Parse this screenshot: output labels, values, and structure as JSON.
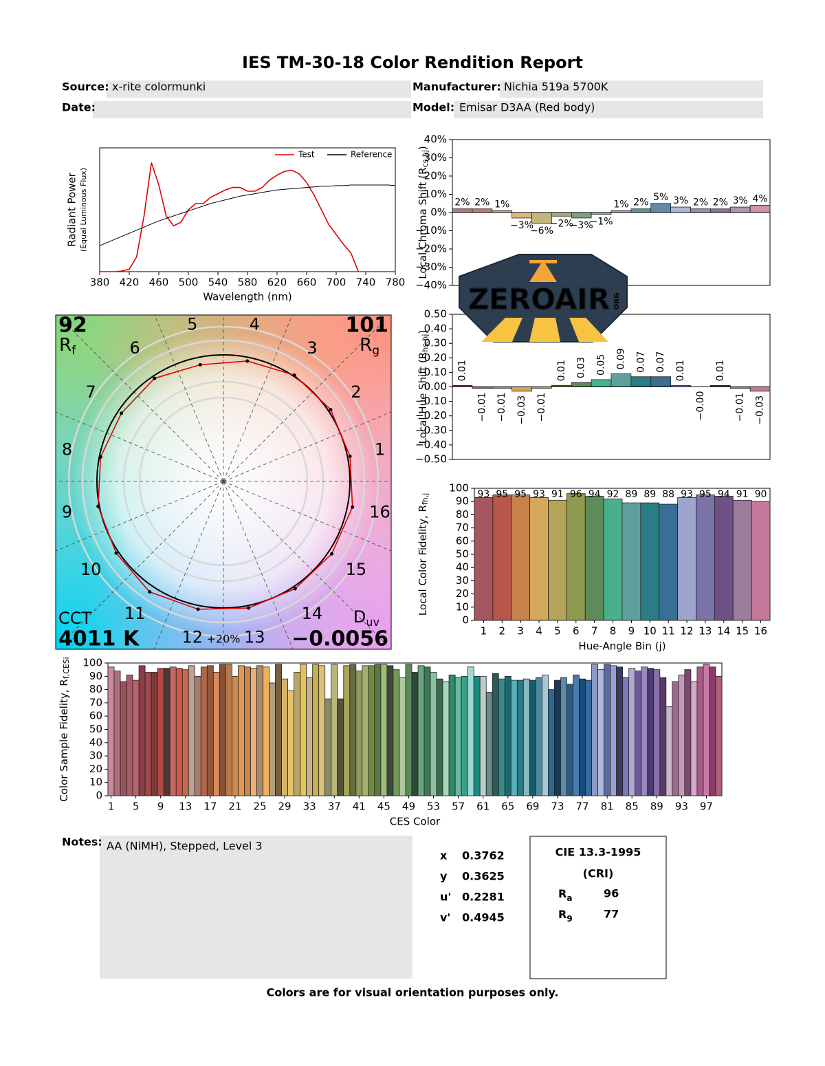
{
  "header": {
    "title": "IES TM-30-18 Color Rendition Report",
    "fields": [
      {
        "label": "Source:",
        "value": "x-rite colormunki"
      },
      {
        "label": "Manufacturer:",
        "value": "Nichia 519a 5700K"
      },
      {
        "label": "Date:"
      },
      {
        "label": "Model:",
        "value": "Emisar D3AA (Red body)"
      }
    ]
  },
  "chart_data": [
    {
      "type": "line",
      "xlabel": "Wavelength (nm)",
      "ylabel": {
        "text": "Radiant Power",
        "note": "(Equal Luminous Flux)"
      },
      "x": [
        380,
        390,
        400,
        410,
        420,
        430,
        440,
        450,
        460,
        470,
        480,
        490,
        500,
        510,
        520,
        530,
        540,
        550,
        560,
        570,
        580,
        590,
        600,
        610,
        620,
        630,
        640,
        650,
        660,
        670,
        680,
        690,
        700,
        710,
        720,
        730,
        740,
        750,
        760,
        770,
        780
      ],
      "xlim": [
        380,
        780
      ],
      "xticks": [
        380,
        420,
        460,
        500,
        540,
        580,
        620,
        660,
        700,
        740,
        780
      ],
      "ylim": [
        0,
        1
      ],
      "legend": "upper right",
      "series": [
        {
          "name": "Test",
          "color": "#e00000",
          "values": [
            0,
            0,
            0,
            0.005,
            0.02,
            0.12,
            0.45,
            0.88,
            0.7,
            0.45,
            0.37,
            0.4,
            0.5,
            0.55,
            0.55,
            0.6,
            0.63,
            0.66,
            0.68,
            0.68,
            0.65,
            0.65,
            0.68,
            0.74,
            0.78,
            0.81,
            0.82,
            0.79,
            0.72,
            0.62,
            0.5,
            0.38,
            0.3,
            0.22,
            0.15,
            0,
            null,
            null,
            null,
            null,
            null
          ]
        },
        {
          "name": "Reference",
          "color": "#000000",
          "values": [
            0.21,
            0.235,
            0.26,
            0.285,
            0.31,
            0.335,
            0.36,
            0.385,
            0.41,
            0.43,
            0.45,
            0.47,
            0.49,
            0.51,
            0.53,
            0.55,
            0.565,
            0.58,
            0.595,
            0.61,
            0.62,
            0.63,
            0.64,
            0.65,
            0.66,
            0.665,
            0.67,
            0.675,
            0.68,
            0.685,
            0.69,
            0.69,
            0.695,
            0.695,
            0.7,
            0.7,
            0.7,
            0.7,
            0.7,
            0.7,
            0.695
          ]
        }
      ]
    },
    {
      "type": "bar",
      "ylabel": {
        "text": "Local Chroma Shift (R",
        "sub": "cs,hj",
        "suffix": ")"
      },
      "values": [
        2,
        2,
        1,
        -3,
        -6,
        -2,
        -3,
        -1,
        1,
        2,
        5,
        3,
        2,
        2,
        3,
        4
      ],
      "value_labels": [
        "2%",
        "2%",
        "1%",
        "−3%",
        "−6%",
        "−2%",
        "−3%",
        "−1%",
        "1%",
        "2%",
        "5%",
        "3%",
        "2%",
        "2%",
        "3%",
        "4%"
      ],
      "colors": [
        "#a5565e",
        "#b8564a",
        "#c8824b",
        "#d4a75a",
        "#b3a458",
        "#8e9a4e",
        "#5f8a5a",
        "#48b08a",
        "#5fa09c",
        "#2a7d87",
        "#3a6e96",
        "#9ea5cc",
        "#7a74a8",
        "#6e4f86",
        "#9b7c9b",
        "#c4789a"
      ],
      "ylim": [
        -40,
        40
      ],
      "yticks": [
        {
          "value": 40,
          "label": "40%"
        },
        {
          "value": 30,
          "label": "30%"
        },
        {
          "value": 20,
          "label": "20%"
        },
        {
          "value": 10,
          "label": "10%"
        },
        {
          "value": 0,
          "label": "0%"
        },
        {
          "value": -10,
          "label": "−10%"
        },
        {
          "value": -20,
          "label": "−20%"
        },
        {
          "value": -30,
          "label": "−30%"
        },
        {
          "value": -40,
          "label": "−40%"
        }
      ]
    },
    {
      "type": "bar",
      "ylabel": {
        "text": "Local Hue Shift (R",
        "sub": "hs,hj",
        "suffix": ")"
      },
      "values": [
        0.01,
        -0.01,
        -0.01,
        -0.03,
        -0.01,
        0.01,
        0.03,
        0.05,
        0.09,
        0.07,
        0.07,
        0.01,
        -0.0,
        0.01,
        -0.01,
        -0.03
      ],
      "value_labels": [
        "0.01",
        "−0.01",
        "−0.01",
        "−0.03",
        "−0.01",
        "0.01",
        "0.03",
        "0.05",
        "0.09",
        "0.07",
        "0.07",
        "0.01",
        "−0.00",
        "0.01",
        "−0.01",
        "−0.03"
      ],
      "colors": [
        "#a5565e",
        "#b8564a",
        "#c8824b",
        "#d4a75a",
        "#b3a458",
        "#8e9a4e",
        "#5f8a5a",
        "#48b08a",
        "#5fa09c",
        "#2a7d87",
        "#3a6e96",
        "#9ea5cc",
        "#7a74a8",
        "#6e4f86",
        "#9b7c9b",
        "#c4789a"
      ],
      "ylim": [
        -0.5,
        0.5
      ],
      "yticks": [
        {
          "value": 0.5,
          "label": "0.50"
        },
        {
          "value": 0.4,
          "label": "0.40"
        },
        {
          "value": 0.3,
          "label": "0.30"
        },
        {
          "value": 0.2,
          "label": "0.20"
        },
        {
          "value": 0.1,
          "label": "0.10"
        },
        {
          "value": 0,
          "label": "0.00"
        },
        {
          "value": -0.1,
          "label": "−0.10"
        },
        {
          "value": -0.2,
          "label": "−0.20"
        },
        {
          "value": -0.3,
          "label": "−0.30"
        },
        {
          "value": -0.4,
          "label": "−0.40"
        },
        {
          "value": -0.5,
          "label": "−0.50"
        }
      ]
    },
    {
      "type": "bar",
      "ylabel": {
        "text": "Local Color Fidelity, R",
        "sub": "fh,j"
      },
      "xlabel": "Hue-Angle Bin (j)",
      "categories": [
        1,
        2,
        3,
        4,
        5,
        6,
        7,
        8,
        9,
        10,
        11,
        12,
        13,
        14,
        15,
        16
      ],
      "values": [
        93,
        95,
        95,
        93,
        91,
        96,
        94,
        92,
        89,
        89,
        88,
        93,
        95,
        94,
        91,
        90
      ],
      "colors": [
        "#a5565e",
        "#b8564a",
        "#c8824b",
        "#d4a75a",
        "#b3a458",
        "#8e9a4e",
        "#5f8a5a",
        "#48b08a",
        "#5fa09c",
        "#2a7d87",
        "#3a6e96",
        "#9ea5cc",
        "#7a74a8",
        "#6e4f86",
        "#9b7c9b",
        "#c4789a"
      ],
      "ylim": [
        0,
        100
      ],
      "yticks": [
        0,
        10,
        20,
        30,
        40,
        50,
        60,
        70,
        80,
        90,
        100
      ]
    },
    {
      "type": "bar",
      "ylabel": {
        "text": "Color Sample Fidelity, R",
        "sub": "f,CESi"
      },
      "xlabel": "CES Color",
      "categories": [
        1,
        null,
        null,
        null,
        5,
        null,
        null,
        null,
        9,
        null,
        null,
        null,
        13,
        null,
        null,
        null,
        17,
        null,
        null,
        null,
        21,
        null,
        null,
        null,
        25,
        null,
        null,
        null,
        29,
        null,
        null,
        null,
        33,
        null,
        null,
        null,
        37,
        null,
        null,
        null,
        41,
        null,
        null,
        null,
        45,
        null,
        null,
        null,
        49,
        null,
        null,
        null,
        53,
        null,
        null,
        null,
        57,
        null,
        null,
        null,
        61,
        null,
        null,
        null,
        65,
        null,
        null,
        null,
        69,
        null,
        null,
        null,
        73,
        null,
        null,
        null,
        77,
        null,
        null,
        null,
        81,
        null,
        null,
        null,
        85,
        null,
        null,
        null,
        89,
        null,
        null,
        null,
        93,
        null,
        null,
        null,
        97,
        null,
        null
      ],
      "values": [
        97,
        94,
        86,
        91,
        87,
        98,
        93,
        93,
        96,
        96,
        97,
        96,
        95,
        98,
        90,
        97,
        98,
        93,
        99,
        99,
        90,
        98,
        97,
        96,
        98,
        97,
        85,
        99,
        88,
        79,
        93,
        99,
        89,
        99,
        98,
        73,
        99,
        73,
        98,
        99,
        94,
        98,
        98,
        99,
        99,
        98,
        95,
        89,
        99,
        93,
        98,
        97,
        93,
        88,
        86,
        91,
        89,
        90,
        97,
        90,
        90,
        78,
        92,
        88,
        90,
        87,
        87,
        88,
        87,
        89,
        91,
        80,
        87,
        89,
        84,
        91,
        88,
        87,
        99,
        95,
        99,
        98,
        97,
        89,
        96,
        94,
        97,
        96,
        95,
        89,
        67,
        86,
        91,
        95,
        86,
        97,
        99,
        97,
        90
      ],
      "colors": [
        "#c98a9b",
        "#b06f7c",
        "#9e4f5a",
        "#a65c67",
        "#b5646b",
        "#8e3d45",
        "#a04a4d",
        "#7d3b3e",
        "#b24b45",
        "#4e3837",
        "#c4695f",
        "#d0584c",
        "#c9694f",
        "#bfa093",
        "#a57d6b",
        "#b1664a",
        "#93593e",
        "#d88a5a",
        "#855238",
        "#b8794c",
        "#cf8a4f",
        "#e09a55",
        "#c78747",
        "#e9b07a",
        "#a98a6a",
        "#f0b05a",
        "#b49e80",
        "#75603f",
        "#d9b36b",
        "#e8c26a",
        "#b7a46a",
        "#e0c35a",
        "#c7b38a",
        "#c8b050",
        "#d9c27a",
        "#8b8a6a",
        "#b9b67a",
        "#53523a",
        "#a7a65a",
        "#6a6a40",
        "#8c9a5a",
        "#a5b070",
        "#6f8a3f",
        "#5a7a45",
        "#9fba7a",
        "#3f4a3a",
        "#72985a",
        "#b4c8a0",
        "#5a8a5a",
        "#2e4a3a",
        "#6aa47a",
        "#3a7a5a",
        "#8ec0a0",
        "#3a6a50",
        "#a8d8c0",
        "#2e8a6a",
        "#6ab8a0",
        "#3aa08a",
        "#a0d8d0",
        "#1a8a80",
        "#b8d0cc",
        "#6a8a88",
        "#2a5a5a",
        "#3a8a8a",
        "#1a6a70",
        "#5ab0b8",
        "#2a7a88",
        "#8ab8c0",
        "#1a5a68",
        "#4a8aa0",
        "#a8c8d8",
        "#2a6a90",
        "#1a3a58",
        "#5a8ab0",
        "#2a5a80",
        "#4a7ab0",
        "#1a4a78",
        "#3a6aa0",
        "#8a9ac8",
        "#b0b8d8",
        "#5a6aa0",
        "#9aa0d0",
        "#3a3a68",
        "#7a7ab8",
        "#b0a8d0",
        "#6a5a98",
        "#9a88c0",
        "#4a3a70",
        "#8a70a8",
        "#5a3a6a",
        "#c8b8c8",
        "#9a6a90",
        "#c89ab8",
        "#7a4a70",
        "#d8a8c8",
        "#a85a88",
        "#c87aa8",
        "#8a3a68",
        "#b0607a"
      ],
      "ylim": [
        0,
        100
      ],
      "yticks": [
        0,
        10,
        20,
        30,
        40,
        50,
        60,
        70,
        80,
        90,
        100
      ]
    },
    {
      "type": "vector",
      "rf": 92,
      "rf_symbol": {
        "text": "R",
        "sub": "f"
      },
      "rg": 101,
      "rg_symbol": {
        "text": "R",
        "sub": "g"
      },
      "bins": [
        1,
        2,
        3,
        4,
        5,
        6,
        7,
        8,
        9,
        10,
        11,
        12,
        13,
        14,
        15,
        16
      ],
      "cct_label": "CCT",
      "cct": "4011 K",
      "duv_label": {
        "text": "D",
        "sub": "uv"
      },
      "duv": "−0.0056",
      "scale_label": "+20%"
    }
  ],
  "notes": {
    "label": "Notes:",
    "text": "AA (NiMH), Stepped, Level 3"
  },
  "chromaticity": [
    {
      "label": "x",
      "value": 0.3762
    },
    {
      "label": "y",
      "value": 0.3625
    },
    {
      "label": "u'",
      "value": 0.2281
    },
    {
      "label": "v'",
      "value": 0.4945
    }
  ],
  "cri": {
    "title": "CIE 13.3-1995",
    "subtitle": "(CRI)",
    "items": [
      {
        "symbol": "R",
        "sub": "a",
        "value": 96
      },
      {
        "symbol": "R",
        "sub": "9",
        "value": 77
      }
    ]
  },
  "footer": "Colors are for visual orientation purposes only.",
  "watermark": {
    "text": "ZEROAIR",
    "suffix": "ORG"
  }
}
